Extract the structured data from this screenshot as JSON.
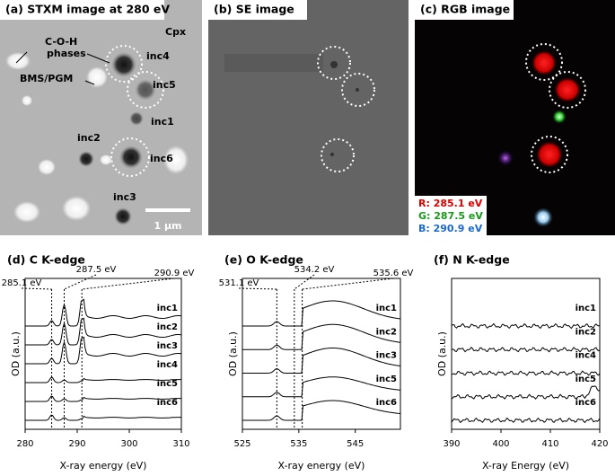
{
  "images": [
    {
      "title": "(a) STXM image at 280 eV",
      "labels": [
        "C-O-H",
        "phases",
        "BMS/PGM",
        "Cpx",
        "inc4",
        "inc5",
        "inc1",
        "inc2",
        "inc6",
        "inc3"
      ],
      "scale_bar": "1 µm"
    },
    {
      "title": "(b) SE image"
    },
    {
      "title": "(c) RGB image",
      "channels": [
        {
          "label": "R: 285.1 eV",
          "color": "#e00000"
        },
        {
          "label": "G: 287.5 eV",
          "color": "#1a9a1a"
        },
        {
          "label": "B: 290.9 eV",
          "color": "#1a6ad0"
        }
      ]
    }
  ],
  "chart_data": [
    {
      "type": "line",
      "title": "(d) C K-edge",
      "xlabel": "X-ray energy (eV)",
      "ylabel": "OD (a.u.)",
      "xlim": [
        280,
        310
      ],
      "xticks": [
        280,
        290,
        300,
        310
      ],
      "markers": [
        {
          "value": 285.1,
          "label": "285.1 eV"
        },
        {
          "value": 287.5,
          "label": "287.5 eV"
        },
        {
          "value": 290.9,
          "label": "290.9 eV"
        }
      ],
      "series": [
        {
          "name": "inc1"
        },
        {
          "name": "inc2"
        },
        {
          "name": "inc3"
        },
        {
          "name": "inc4"
        },
        {
          "name": "inc5"
        },
        {
          "name": "inc6"
        }
      ]
    },
    {
      "type": "line",
      "title": "(e) O K-edge",
      "xlabel": "X-ray energy (eV)",
      "ylabel": "OD (a.u.)",
      "xlim": [
        525,
        553
      ],
      "xticks": [
        525,
        535,
        545
      ],
      "markers": [
        {
          "value": 531.1,
          "label": "531.1 eV"
        },
        {
          "value": 534.2,
          "label": "534.2 eV"
        },
        {
          "value": 535.6,
          "label": "535.6 eV"
        }
      ],
      "series": [
        {
          "name": "inc1"
        },
        {
          "name": "inc2"
        },
        {
          "name": "inc3"
        },
        {
          "name": "inc5"
        },
        {
          "name": "inc6"
        }
      ]
    },
    {
      "type": "line",
      "title": "(f) N K-edge",
      "xlabel": "X-ray Energy (eV)",
      "ylabel": "OD (a.u.)",
      "xlim": [
        390,
        420
      ],
      "xticks": [
        390,
        400,
        410,
        420
      ],
      "markers": [],
      "series": [
        {
          "name": "inc1"
        },
        {
          "name": "inc2"
        },
        {
          "name": "inc4"
        },
        {
          "name": "inc5"
        },
        {
          "name": "inc6"
        }
      ]
    }
  ]
}
